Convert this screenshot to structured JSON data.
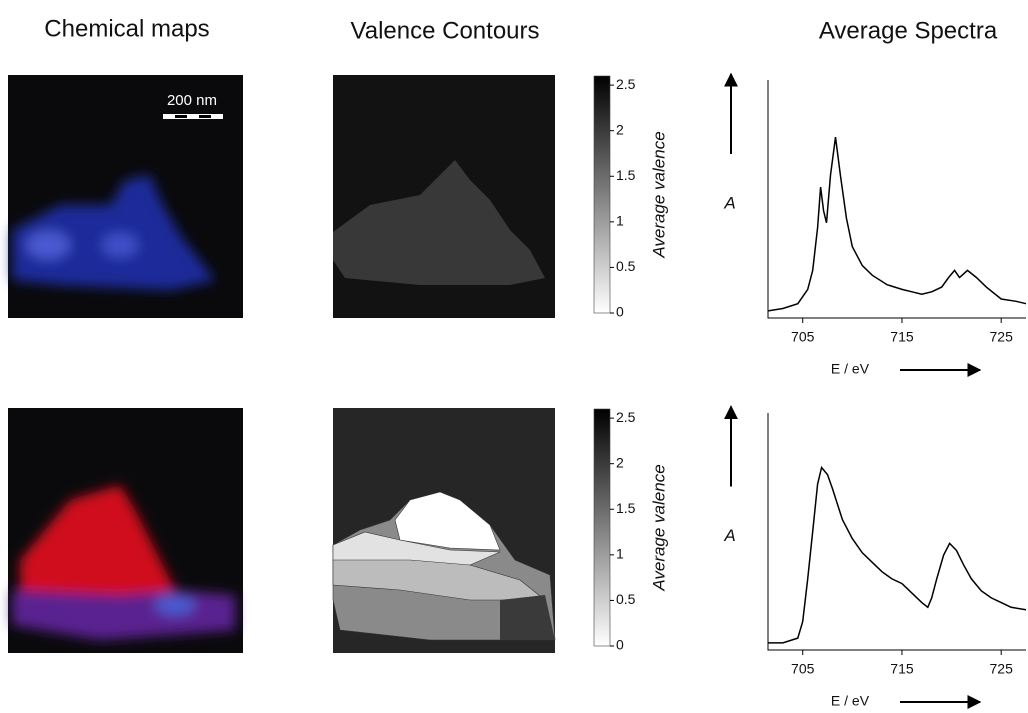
{
  "headers": [
    "Chemical maps",
    "Valence Contours",
    "Average Spectra"
  ],
  "scale_bar": "200 nm",
  "chart_data": [
    {
      "type": "colorbar",
      "label": "Average valence",
      "ylim": [
        0,
        2.6
      ],
      "yticks": [
        0,
        0.5,
        1,
        1.5,
        2,
        2.5
      ]
    },
    {
      "type": "line",
      "y_label": "A",
      "x_label": "E / eV",
      "xlim": [
        701.5,
        727.5
      ],
      "ylim": [
        0,
        1
      ],
      "xticks": [
        705,
        715,
        725
      ],
      "x": [
        701.5,
        703,
        704.5,
        705.5,
        706,
        706.5,
        706.8,
        707.1,
        707.4,
        707.8,
        708.3,
        708.8,
        709.4,
        710,
        711,
        712,
        713.5,
        715,
        716,
        717,
        718,
        719,
        719.7,
        720.3,
        720.8,
        721.6,
        722.5,
        723.5,
        725,
        726.5,
        727.5
      ],
      "values": [
        0.03,
        0.04,
        0.06,
        0.12,
        0.2,
        0.38,
        0.55,
        0.45,
        0.4,
        0.6,
        0.76,
        0.6,
        0.42,
        0.3,
        0.22,
        0.18,
        0.14,
        0.12,
        0.11,
        0.1,
        0.11,
        0.13,
        0.17,
        0.2,
        0.17,
        0.2,
        0.17,
        0.13,
        0.08,
        0.07,
        0.06
      ]
    },
    {
      "type": "colorbar",
      "label": "Average valence",
      "ylim": [
        0,
        2.6
      ],
      "yticks": [
        0,
        0.5,
        1,
        1.5,
        2,
        2.5
      ]
    },
    {
      "type": "line",
      "y_label": "A",
      "x_label": "E / eV",
      "xlim": [
        701.5,
        727.5
      ],
      "ylim": [
        0,
        1
      ],
      "xticks": [
        705,
        715,
        725
      ],
      "x": [
        701.5,
        703,
        704.5,
        705,
        705.5,
        706,
        706.5,
        706.9,
        707.5,
        708,
        709,
        710,
        711,
        712,
        713,
        714,
        715,
        716,
        717,
        717.6,
        718,
        718.5,
        719.2,
        719.8,
        720.5,
        721.2,
        722,
        723,
        724,
        725,
        726,
        727.5
      ],
      "values": [
        0.03,
        0.03,
        0.05,
        0.12,
        0.3,
        0.5,
        0.7,
        0.77,
        0.74,
        0.68,
        0.55,
        0.47,
        0.41,
        0.37,
        0.33,
        0.3,
        0.28,
        0.24,
        0.2,
        0.18,
        0.22,
        0.3,
        0.4,
        0.45,
        0.42,
        0.36,
        0.3,
        0.25,
        0.22,
        0.2,
        0.18,
        0.17
      ]
    }
  ]
}
